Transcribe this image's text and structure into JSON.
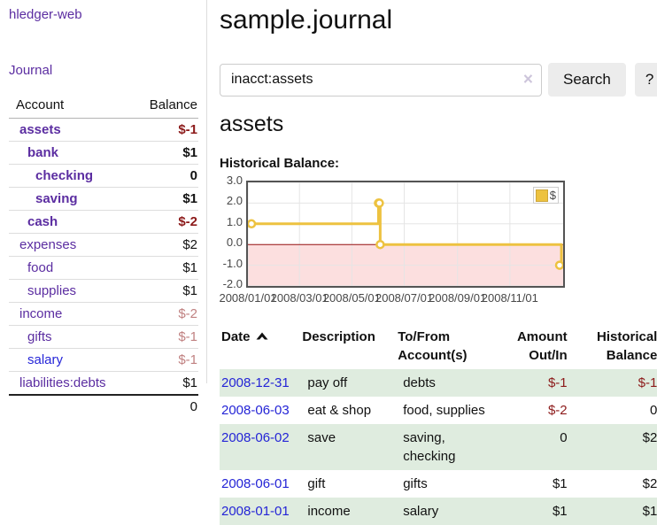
{
  "app": {
    "title": "hledger-web",
    "nav_journal": "Journal"
  },
  "accounts": {
    "header_account": "Account",
    "header_balance": "Balance",
    "rows": [
      {
        "name": "assets",
        "depth": 1,
        "bold": true,
        "balance": "$-1",
        "balance_style": "neg-strong"
      },
      {
        "name": "bank",
        "depth": 2,
        "bold": true,
        "balance": "$1",
        "balance_style": "pos"
      },
      {
        "name": "checking",
        "depth": 3,
        "bold": true,
        "balance": "0",
        "balance_style": "pos"
      },
      {
        "name": "saving",
        "depth": 3,
        "bold": true,
        "balance": "$1",
        "balance_style": "pos"
      },
      {
        "name": "cash",
        "depth": 2,
        "bold": true,
        "balance": "$-2",
        "balance_style": "neg-strong"
      },
      {
        "name": "expenses",
        "depth": 1,
        "bold": false,
        "balance": "$2",
        "balance_style": "pos"
      },
      {
        "name": "food",
        "depth": 2,
        "bold": false,
        "balance": "$1",
        "balance_style": "pos"
      },
      {
        "name": "supplies",
        "depth": 2,
        "bold": false,
        "balance": "$1",
        "balance_style": "pos"
      },
      {
        "name": "income",
        "depth": 1,
        "bold": false,
        "balance": "$-2",
        "balance_style": "neg-soft"
      },
      {
        "name": "gifts",
        "depth": 2,
        "bold": false,
        "balance": "$-1",
        "balance_style": "neg-soft"
      },
      {
        "name": "salary",
        "depth": 2,
        "bold": false,
        "balance": "$-1",
        "balance_style": "neg-soft",
        "unvisited": true
      },
      {
        "name": "liabilities:debts",
        "depth": 1,
        "bold": false,
        "balance": "$1",
        "balance_style": "pos"
      }
    ],
    "total": "0"
  },
  "header": {
    "title": "sample.journal"
  },
  "search": {
    "value": "inacct:assets",
    "clear_icon": "×",
    "button_label": "Search",
    "help_label": "?"
  },
  "account_page": {
    "title": "assets",
    "chart_label": "Historical Balance:"
  },
  "chart_data": {
    "type": "line",
    "step": true,
    "title": "Historical Balance:",
    "legend": [
      {
        "label": "$",
        "color": "#EDC240"
      }
    ],
    "legend_position": "top-right",
    "series": [
      {
        "name": "$",
        "color": "#EDC240",
        "points": [
          [
            "2008-01-01",
            1
          ],
          [
            "2008-06-01",
            2
          ],
          [
            "2008-06-02",
            2
          ],
          [
            "2008-06-03",
            0
          ],
          [
            "2008-12-31",
            -1
          ]
        ]
      }
    ],
    "x_ticks": [
      "2008/01/01",
      "2008/03/01",
      "2008/05/01",
      "2008/07/01",
      "2008/09/01",
      "2008/11/01"
    ],
    "y_ticks": [
      "3.0",
      "2.0",
      "1.0",
      "0.0",
      "-1.0",
      "-2.0"
    ],
    "ylim": [
      -2,
      3
    ],
    "x_range_days": 367,
    "grid": true,
    "grid_color": "#e5e5e5",
    "negative_region_color": "#fcdfdf",
    "zero_line_color": "#991111"
  },
  "register": {
    "headers": [
      {
        "line1": "Date",
        "line2": "",
        "sort": true
      },
      {
        "line1": "Description",
        "line2": ""
      },
      {
        "line1": "To/From",
        "line2": "Account(s)"
      },
      {
        "line1": "Amount",
        "line2": "Out/In"
      },
      {
        "line1": "Historical",
        "line2": "Balance"
      }
    ],
    "rows": [
      {
        "date": "2008-12-31",
        "description": "pay off",
        "accounts": "debts",
        "amount": "$-1",
        "amount_style": "neg",
        "balance": "$-1",
        "balance_style": "neg",
        "shaded": true
      },
      {
        "date": "2008-06-03",
        "description": "eat & shop",
        "accounts": "food, supplies",
        "amount": "$-2",
        "amount_style": "neg",
        "balance": "0",
        "balance_style": "pos",
        "shaded": false
      },
      {
        "date": "2008-06-02",
        "description": "save",
        "accounts": "saving, checking",
        "amount": "0",
        "amount_style": "pos",
        "balance": "$2",
        "balance_style": "pos",
        "shaded": true
      },
      {
        "date": "2008-06-01",
        "description": "gift",
        "accounts": "gifts",
        "amount": "$1",
        "amount_style": "pos",
        "balance": "$2",
        "balance_style": "pos",
        "shaded": false
      },
      {
        "date": "2008-01-01",
        "description": "income",
        "accounts": "salary",
        "amount": "$1",
        "amount_style": "pos",
        "balance": "$1",
        "balance_style": "pos",
        "shaded": true
      }
    ]
  }
}
